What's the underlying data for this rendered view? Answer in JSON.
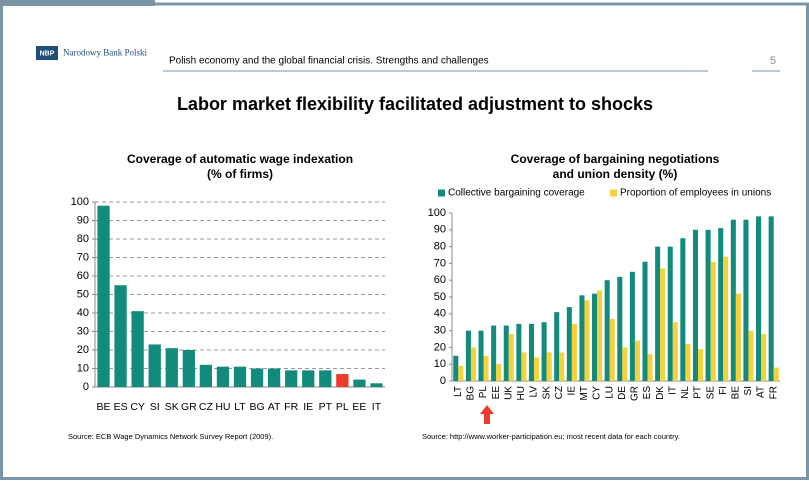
{
  "header": {
    "logo": "NBP",
    "bank": "Narodowy Bank Polski",
    "subject": "Polish economy and the global financial crisis. Strengths and challenges",
    "page": "5",
    "title": "Labor market flexibility facilitated adjustment to shocks"
  },
  "chart_data": [
    {
      "type": "bar",
      "title": "Coverage of automatic wage indexation",
      "subtitle": "(% of firms)",
      "categories": [
        "BE",
        "ES",
        "CY",
        "SI",
        "SK",
        "GR",
        "CZ",
        "HU",
        "LT",
        "BG",
        "AT",
        "FR",
        "IE",
        "PT",
        "PL",
        "EE",
        "IT"
      ],
      "values": [
        98,
        55,
        41,
        23,
        21,
        20,
        12,
        11,
        11,
        10,
        10,
        9,
        9,
        9,
        7,
        4,
        2
      ],
      "colors": [
        "#128a7c",
        "#128a7c",
        "#128a7c",
        "#128a7c",
        "#128a7c",
        "#128a7c",
        "#128a7c",
        "#128a7c",
        "#128a7c",
        "#128a7c",
        "#128a7c",
        "#128a7c",
        "#128a7c",
        "#128a7c",
        "#ee3b2c",
        "#128a7c",
        "#128a7c"
      ],
      "ylim": [
        0,
        100
      ],
      "yticks": [
        0,
        10,
        20,
        30,
        40,
        50,
        60,
        70,
        80,
        90,
        100
      ],
      "grid": true,
      "source": "Source: ECB Wage Dynamics Network Survey Report (2009)."
    },
    {
      "type": "grouped-bar",
      "title": "Coverage of bargaining negotiations",
      "subtitle": "and union density (%)",
      "categories": [
        "LT",
        "BG",
        "PL",
        "EE",
        "UK",
        "HU",
        "LV",
        "SK",
        "CZ",
        "IE",
        "MT",
        "CY",
        "LU",
        "DE",
        "GR",
        "ES",
        "DK",
        "IT",
        "NL",
        "PT",
        "SE",
        "FI",
        "BE",
        "SI",
        "AT",
        "FR"
      ],
      "series": [
        {
          "name": "Collective bargaining coverage",
          "color": "#128a7c",
          "values": [
            15,
            30,
            30,
            33,
            33,
            34,
            34,
            35,
            41,
            44,
            51,
            52,
            60,
            62,
            65,
            71,
            80,
            80,
            85,
            90,
            90,
            91,
            96,
            96,
            98,
            98
          ]
        },
        {
          "name": "Proportion of employees in unions",
          "color": "#f5d13c",
          "values": [
            9,
            20,
            15,
            10,
            28,
            17,
            14,
            17,
            17,
            34,
            48,
            54,
            37,
            20,
            24,
            16,
            67,
            35,
            22,
            19,
            71,
            74,
            52,
            30,
            28,
            8
          ]
        }
      ],
      "ylim": [
        0,
        100
      ],
      "yticks": [
        0,
        10,
        20,
        30,
        40,
        50,
        60,
        70,
        80,
        90,
        100
      ],
      "grid": false,
      "legend": "top",
      "source": "Source: http://www.worker-participation.eu; most recent data for each country."
    }
  ]
}
